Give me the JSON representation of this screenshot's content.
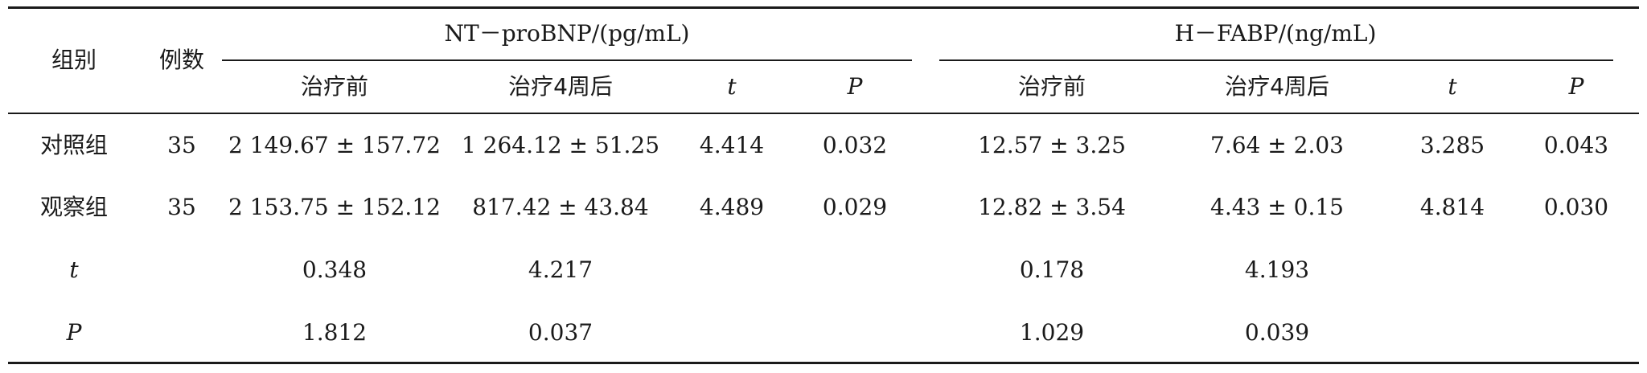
{
  "table": {
    "headers": {
      "group": "组别",
      "cases": "例数",
      "ntprobnp": "NT－proBNP/(pg/mL)",
      "hfabp": "H－FABP/(ng/mL)",
      "before": "治疗前",
      "after": "治疗4周后",
      "t": "t",
      "p": "P"
    },
    "rows": [
      {
        "group": "对照组",
        "cases": "35",
        "nt_before": "2 149.67 ± 157.72",
        "nt_after": "1 264.12 ± 51.25",
        "nt_t": "4.414",
        "nt_p": "0.032",
        "h_before": "12.57 ± 3.25",
        "h_after": "7.64 ± 2.03",
        "h_t": "3.285",
        "h_p": "0.043"
      },
      {
        "group": "观察组",
        "cases": "35",
        "nt_before": "2 153.75 ± 152.12",
        "nt_after": "817.42 ± 43.84",
        "nt_t": "4.489",
        "nt_p": "0.029",
        "h_before": "12.82 ± 3.54",
        "h_after": "4.43 ± 0.15",
        "h_t": "4.814",
        "h_p": "0.030"
      }
    ],
    "stats": [
      {
        "label": "t",
        "nt_before": "0.348",
        "nt_after": "4.217",
        "h_before": "0.178",
        "h_after": "4.193"
      },
      {
        "label": "P",
        "nt_before": "1.812",
        "nt_after": "0.037",
        "h_before": "1.029",
        "h_after": "0.039"
      }
    ]
  }
}
